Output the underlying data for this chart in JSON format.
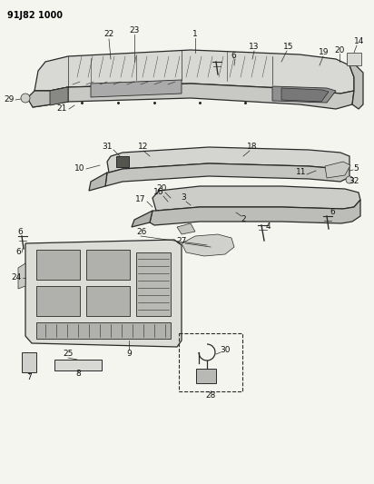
{
  "title_code": "91J82 1000",
  "bg_color": "#f5f5f0",
  "line_color": "#2a2a2a",
  "figsize": [
    4.12,
    5.33
  ],
  "dpi": 100
}
